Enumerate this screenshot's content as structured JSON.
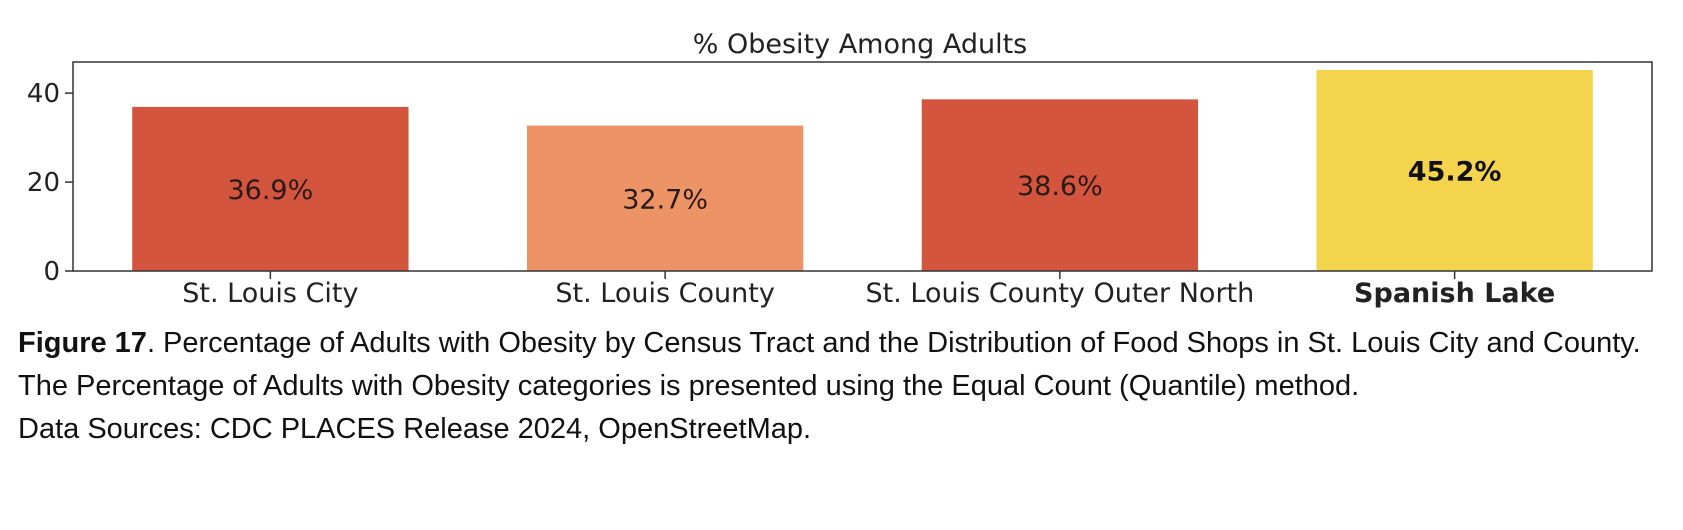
{
  "chart_data": {
    "type": "bar",
    "title": "% Obesity Among Adults",
    "categories": [
      "St. Louis City",
      "St. Louis County",
      "St. Louis County Outer North",
      "Spanish Lake"
    ],
    "values": [
      36.9,
      32.7,
      38.6,
      45.2
    ],
    "data_labels": [
      "36.9%",
      "32.7%",
      "38.6%",
      "45.2%"
    ],
    "bar_colors": [
      "#d4553d",
      "#ed9466",
      "#d4553d",
      "#f4d44d"
    ],
    "highlighted_category": "Spanish Lake",
    "ylim": [
      0,
      47
    ],
    "yticks": [
      0,
      20,
      40
    ],
    "xlabel": "",
    "ylabel": "",
    "grid": false
  },
  "caption": {
    "figure_number": "Figure 17",
    "text": ". Percentage of Adults with Obesity by Census Tract and the Distribution of Food Shops in St. Louis City and County. The Percentage of Adults with Obesity categories is presented using the Equal Count (Quantile) method.",
    "sources": "Data Sources: CDC PLACES Release 2024, OpenStreetMap."
  }
}
